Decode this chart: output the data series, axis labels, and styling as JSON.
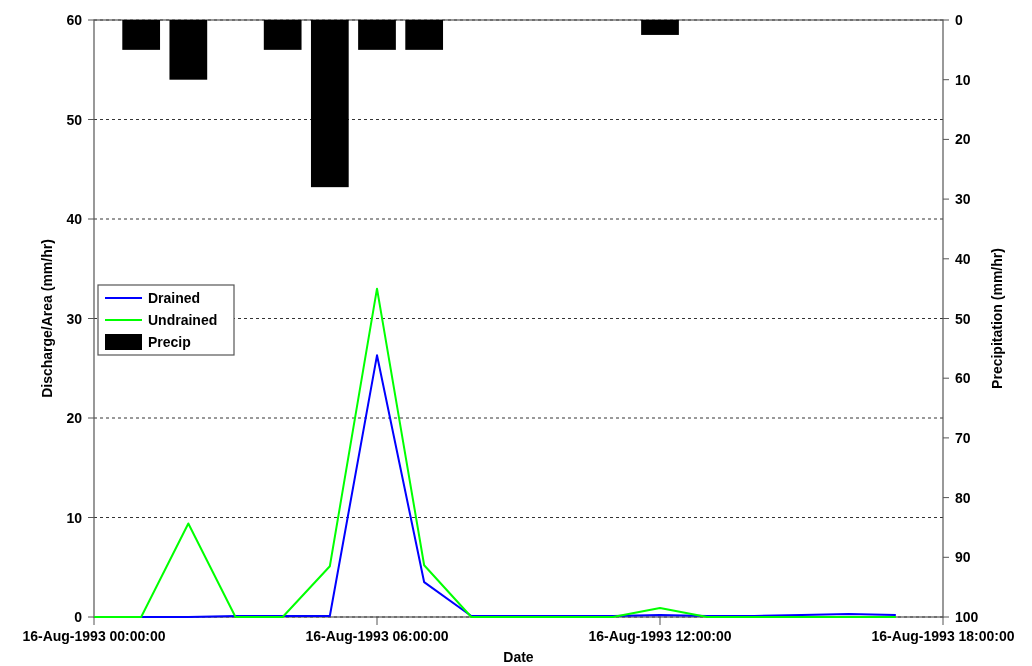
{
  "chart_data": {
    "type": "line",
    "xlabel": "Date",
    "ylabel": "Discharge/Area (mm/hr)",
    "y2label": "Precipitation (mm/hr)",
    "xlim": [
      "1993-08-16T00:00",
      "1993-08-16T18:00"
    ],
    "xticks": [
      {
        "value": "1993-08-16T00:00",
        "label": "16-Aug-1993 00:00:00"
      },
      {
        "value": "1993-08-16T06:00",
        "label": "16-Aug-1993 06:00:00"
      },
      {
        "value": "1993-08-16T12:00",
        "label": "16-Aug-1993 12:00:00"
      },
      {
        "value": "1993-08-16T18:00",
        "label": "16-Aug-1993 18:00:00"
      }
    ],
    "ylim": [
      0,
      60
    ],
    "yticks": [
      0,
      10,
      20,
      30,
      40,
      50,
      60
    ],
    "y2lim": [
      100,
      0
    ],
    "y2ticks": [
      0,
      10,
      20,
      30,
      40,
      50,
      60,
      70,
      80,
      90,
      100
    ],
    "grid": "y",
    "legend": "left",
    "line_style": "solid",
    "x": [
      "1993-08-16T00:00",
      "1993-08-16T01:00",
      "1993-08-16T02:00",
      "1993-08-16T03:00",
      "1993-08-16T04:00",
      "1993-08-16T05:00",
      "1993-08-16T06:00",
      "1993-08-16T07:00",
      "1993-08-16T08:00",
      "1993-08-16T09:00",
      "1993-08-16T10:00",
      "1993-08-16T11:00",
      "1993-08-16T12:00",
      "1993-08-16T13:00",
      "1993-08-16T14:00",
      "1993-08-16T15:00",
      "1993-08-16T16:00",
      "1993-08-16T17:00"
    ],
    "series": [
      {
        "name": "Drained",
        "color": "#0000ff",
        "values": [
          0,
          0,
          0,
          0.1,
          0.1,
          0.1,
          26.3,
          3.5,
          0.1,
          0.1,
          0.1,
          0.1,
          0.2,
          0.1,
          0.1,
          0.2,
          0.3,
          0.2
        ]
      },
      {
        "name": "Undrained",
        "color": "#00ff00",
        "values": [
          0,
          0,
          9.4,
          0,
          0,
          5.1,
          33,
          5.2,
          0,
          0,
          0,
          0,
          0.9,
          0,
          0,
          0,
          0,
          0
        ]
      },
      {
        "name": "Precip",
        "type": "bar",
        "axis": "y2",
        "color": "#000000",
        "x": [
          "1993-08-16T01:00",
          "1993-08-16T02:00",
          "1993-08-16T04:00",
          "1993-08-16T05:00",
          "1993-08-16T06:00",
          "1993-08-16T07:00",
          "1993-08-16T12:00"
        ],
        "values": [
          5,
          10,
          5,
          28,
          5,
          5,
          2.5
        ]
      }
    ]
  }
}
